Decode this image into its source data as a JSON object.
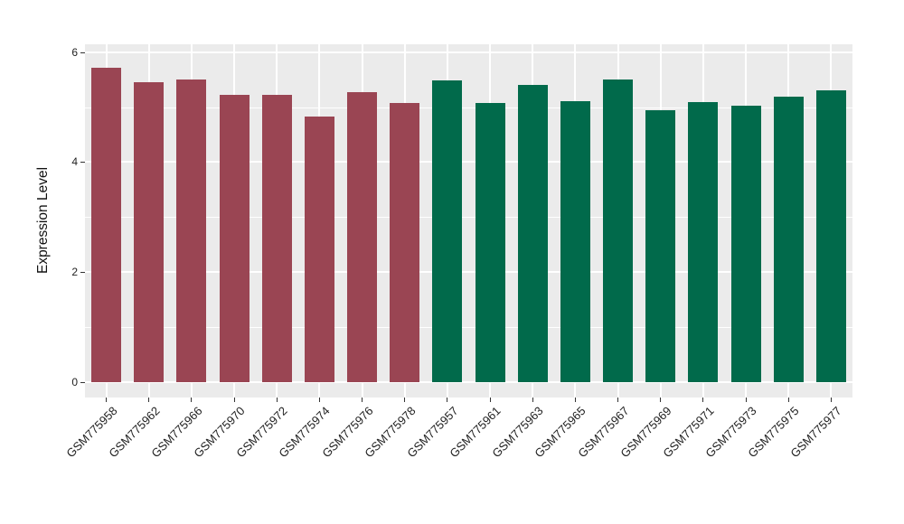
{
  "chart_data": {
    "type": "bar",
    "title": "",
    "xlabel": "",
    "ylabel": "Expression Level",
    "categories": [
      "GSM775958",
      "GSM775962",
      "GSM775966",
      "GSM775970",
      "GSM775972",
      "GSM775974",
      "GSM775976",
      "GSM775978",
      "GSM775957",
      "GSM775961",
      "GSM775963",
      "GSM775965",
      "GSM775967",
      "GSM775969",
      "GSM775971",
      "GSM775973",
      "GSM775975",
      "GSM775977"
    ],
    "values": [
      5.72,
      5.45,
      5.51,
      5.22,
      5.22,
      4.82,
      5.28,
      5.07,
      5.48,
      5.08,
      5.41,
      5.11,
      5.5,
      4.94,
      5.09,
      5.03,
      5.19,
      5.3
    ],
    "bar_colors": [
      "#9A4553",
      "#9A4553",
      "#9A4553",
      "#9A4553",
      "#9A4553",
      "#9A4553",
      "#9A4553",
      "#9A4553",
      "#016A4B",
      "#016A4B",
      "#016A4B",
      "#016A4B",
      "#016A4B",
      "#016A4B",
      "#016A4B",
      "#016A4B",
      "#016A4B",
      "#016A4B"
    ],
    "color_groups": [
      {
        "color": "#9A4553",
        "count": 8
      },
      {
        "color": "#016A4B",
        "count": 10
      }
    ],
    "ylim": [
      0,
      6.14
    ],
    "yticks": [
      0,
      2,
      4,
      6
    ],
    "minor_yticks": [
      1,
      3,
      5
    ],
    "grid": true,
    "legend_position": "none",
    "panel_background": "#EBEBEB",
    "gridline_color": "#FFFFFF",
    "x_tick_label_rotation_deg": 45
  }
}
